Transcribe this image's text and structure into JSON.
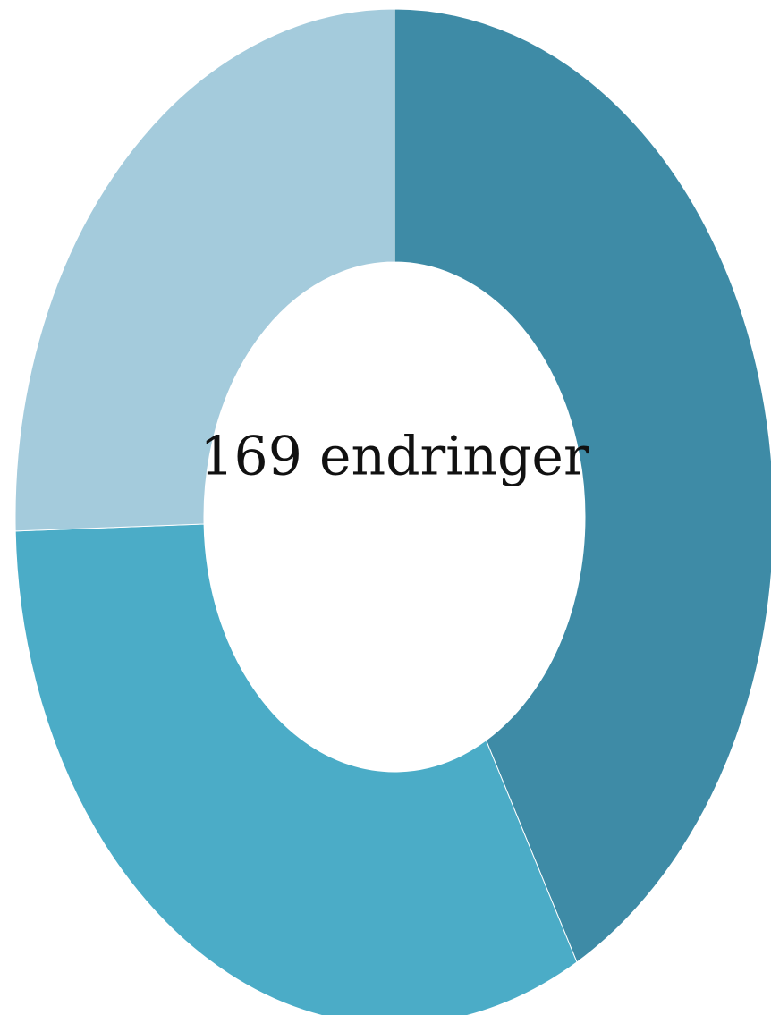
{
  "chart_data": {
    "type": "pie",
    "variant": "donut",
    "center_label": "169 endringer",
    "total": 169,
    "slices": [
      {
        "value": 71,
        "color": "#3e8ba6"
      },
      {
        "value": 55,
        "color": "#4bacc7"
      },
      {
        "value": 43,
        "color": "#a4cbdc"
      }
    ],
    "start_angle_deg": 0,
    "direction": "clockwise",
    "legend": "none"
  }
}
